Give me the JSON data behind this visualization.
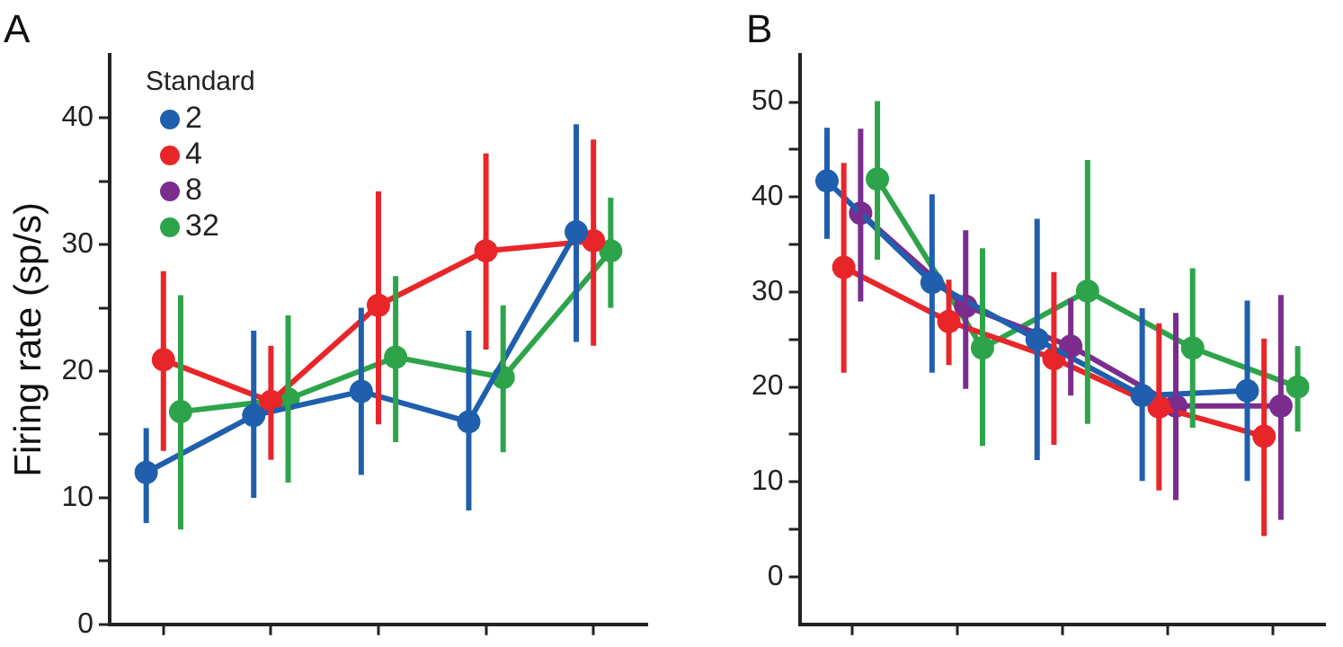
{
  "chart_data": [
    {
      "type": "line",
      "title": "A",
      "ylabel": "Firing rate (sp/s)",
      "legend_title": "Standard",
      "legend": "top left",
      "marker": "circle",
      "grid": false,
      "tick_labels": "y",
      "categories": [
        null,
        null,
        null,
        null,
        null
      ],
      "ylim": [
        0,
        45
      ],
      "yticks": [
        0,
        {
          "value": 5,
          "label": null
        },
        10,
        {
          "value": 15,
          "label": null
        },
        20,
        {
          "value": 25,
          "label": null
        },
        30,
        {
          "value": 35,
          "label": null
        },
        40
      ],
      "series": [
        {
          "name": "2",
          "color": "#1f5fad",
          "values": [
            12,
            16.5,
            18.4,
            16,
            31
          ],
          "errors": [
            [
              8,
              15.5
            ],
            [
              10,
              23.2
            ],
            [
              11.8,
              25
            ],
            [
              9,
              23.2
            ],
            [
              22.3,
              39.5
            ]
          ]
        },
        {
          "name": "4",
          "color": "#e8262a",
          "values": [
            20.9,
            17.6,
            25.2,
            29.5,
            30.3
          ],
          "errors": [
            [
              13.7,
              27.9
            ],
            [
              13,
              22
            ],
            [
              15.8,
              34.2
            ],
            [
              21.7,
              37.2
            ],
            [
              22,
              38.3
            ]
          ]
        },
        {
          "name": "8",
          "color": "#7b2d8e",
          "values": [
            null,
            null,
            null,
            null,
            null
          ]
        },
        {
          "name": "32",
          "color": "#2ea44a",
          "values": [
            16.8,
            17.8,
            21.1,
            19.5,
            29.5
          ],
          "errors": [
            [
              7.5,
              26
            ],
            [
              11.2,
              24.4
            ],
            [
              14.4,
              27.5
            ],
            [
              13.6,
              25.2
            ],
            [
              25,
              33.7
            ]
          ]
        }
      ]
    },
    {
      "type": "line",
      "title": "B",
      "marker": "circle",
      "grid": false,
      "tick_labels": "y",
      "categories": [
        null,
        null,
        null,
        null,
        null
      ],
      "ylim": [
        -5,
        55
      ],
      "yticks": [
        0,
        {
          "value": 5,
          "label": null
        },
        10,
        {
          "value": 15,
          "label": null
        },
        20,
        {
          "value": 25,
          "label": null
        },
        30,
        {
          "value": 35,
          "label": null
        },
        40,
        {
          "value": 45,
          "label": null
        },
        50
      ],
      "series": [
        {
          "color": "#1f5fad",
          "values": [
            41.7,
            31.0,
            25.0,
            19.1,
            19.6
          ],
          "errors": [
            [
              35.6,
              47.3
            ],
            [
              21.5,
              40.3
            ],
            [
              12.3,
              37.7
            ],
            [
              10.1,
              28.3
            ],
            [
              10.1,
              29.1
            ]
          ]
        },
        {
          "color": "#e8262a",
          "values": [
            32.6,
            26.9,
            23.0,
            17.9,
            14.8
          ],
          "errors": [
            [
              21.5,
              43.6
            ],
            [
              22.3,
              31.3
            ],
            [
              13.9,
              32.1
            ],
            [
              9.1,
              26.7
            ],
            [
              4.3,
              25.1
            ]
          ]
        },
        {
          "color": "#7b2d8e",
          "values": [
            38.3,
            28.5,
            24.3,
            18.0,
            18.0
          ],
          "errors": [
            [
              29.0,
              47.2
            ],
            [
              19.8,
              36.5
            ],
            [
              19.1,
              29.3
            ],
            [
              8.1,
              27.8
            ],
            [
              6.0,
              29.7
            ]
          ]
        },
        {
          "color": "#2ea44a",
          "values": [
            41.9,
            24.1,
            30.1,
            24.1,
            20.0
          ],
          "errors": [
            [
              33.4,
              50.1
            ],
            [
              13.8,
              34.6
            ],
            [
              16.1,
              43.9
            ],
            [
              15.7,
              32.5
            ],
            [
              15.3,
              24.3
            ]
          ]
        }
      ]
    }
  ]
}
